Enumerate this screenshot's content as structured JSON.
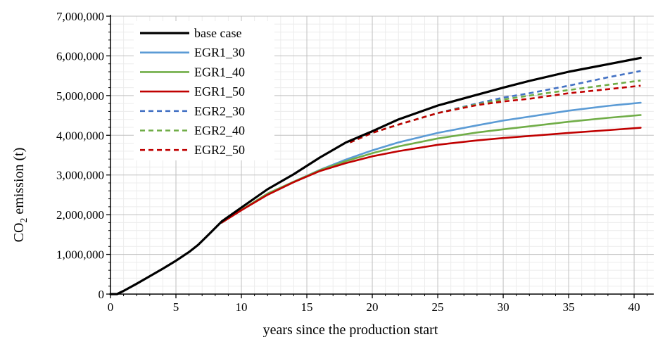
{
  "chart_data": {
    "type": "line",
    "title": "",
    "xlabel": "years since the production start",
    "ylabel_main": "CO",
    "ylabel_sub": "2",
    "ylabel_rest": " emission (t)",
    "xlim": [
      0,
      41.5
    ],
    "ylim": [
      0,
      7000000
    ],
    "xticks": [
      0,
      5,
      10,
      15,
      20,
      25,
      30,
      35,
      40
    ],
    "xtick_labels": [
      "0",
      "5",
      "10",
      "15",
      "20",
      "25",
      "30",
      "35",
      "40"
    ],
    "yticks": [
      0,
      1000000,
      2000000,
      3000000,
      4000000,
      5000000,
      6000000,
      7000000
    ],
    "ytick_labels": [
      "0",
      "1,000,000",
      "2,000,000",
      "3,000,000",
      "4,000,000",
      "5,000,000",
      "6,000,000",
      "7,000,000"
    ],
    "grid": true,
    "legend_position": "top-left",
    "series": [
      {
        "name": "base case",
        "color": "#000000",
        "dash": "solid",
        "points": [
          [
            0,
            0
          ],
          [
            0.5,
            0
          ],
          [
            1,
            80000
          ],
          [
            2,
            260000
          ],
          [
            3,
            450000
          ],
          [
            4,
            640000
          ],
          [
            5,
            840000
          ],
          [
            6,
            1060000
          ],
          [
            6.7,
            1240000
          ],
          [
            7.5,
            1500000
          ],
          [
            8.5,
            1830000
          ],
          [
            10,
            2180000
          ],
          [
            12,
            2640000
          ],
          [
            14,
            3020000
          ],
          [
            16,
            3440000
          ],
          [
            18,
            3820000
          ],
          [
            20,
            4100000
          ],
          [
            22,
            4400000
          ],
          [
            25,
            4750000
          ],
          [
            28,
            5020000
          ],
          [
            30,
            5200000
          ],
          [
            32,
            5370000
          ],
          [
            35,
            5600000
          ],
          [
            38,
            5790000
          ],
          [
            40.5,
            5950000
          ]
        ]
      },
      {
        "name": "EGR1_30",
        "color": "#5b9bd5",
        "dash": "solid",
        "points": [
          [
            8.5,
            1800000
          ],
          [
            10,
            2120000
          ],
          [
            12,
            2530000
          ],
          [
            14,
            2830000
          ],
          [
            16,
            3130000
          ],
          [
            18,
            3390000
          ],
          [
            20,
            3620000
          ],
          [
            22,
            3820000
          ],
          [
            25,
            4060000
          ],
          [
            28,
            4250000
          ],
          [
            30,
            4370000
          ],
          [
            35,
            4620000
          ],
          [
            38,
            4740000
          ],
          [
            40.5,
            4820000
          ]
        ]
      },
      {
        "name": "EGR1_40",
        "color": "#70ad47",
        "dash": "solid",
        "points": [
          [
            8.5,
            1800000
          ],
          [
            10,
            2120000
          ],
          [
            12,
            2530000
          ],
          [
            14,
            2830000
          ],
          [
            16,
            3120000
          ],
          [
            18,
            3350000
          ],
          [
            20,
            3550000
          ],
          [
            22,
            3720000
          ],
          [
            25,
            3920000
          ],
          [
            28,
            4070000
          ],
          [
            30,
            4150000
          ],
          [
            35,
            4340000
          ],
          [
            38,
            4440000
          ],
          [
            40.5,
            4510000
          ]
        ]
      },
      {
        "name": "EGR1_50",
        "color": "#c00000",
        "dash": "solid",
        "points": [
          [
            8.5,
            1800000
          ],
          [
            10,
            2110000
          ],
          [
            12,
            2500000
          ],
          [
            14,
            2820000
          ],
          [
            16,
            3100000
          ],
          [
            18,
            3300000
          ],
          [
            20,
            3470000
          ],
          [
            22,
            3600000
          ],
          [
            25,
            3760000
          ],
          [
            28,
            3870000
          ],
          [
            30,
            3930000
          ],
          [
            35,
            4060000
          ],
          [
            38,
            4130000
          ],
          [
            40.5,
            4190000
          ]
        ]
      },
      {
        "name": "EGR2_30",
        "color": "#4472c4",
        "dash": "dashed",
        "points": [
          [
            18.3,
            3820000
          ],
          [
            20,
            4060000
          ],
          [
            22,
            4270000
          ],
          [
            25,
            4560000
          ],
          [
            28,
            4800000
          ],
          [
            30,
            4950000
          ],
          [
            32,
            5060000
          ],
          [
            35,
            5250000
          ],
          [
            38,
            5460000
          ],
          [
            40.5,
            5620000
          ]
        ]
      },
      {
        "name": "EGR2_40",
        "color": "#70ad47",
        "dash": "dashed",
        "points": [
          [
            18.3,
            3820000
          ],
          [
            20,
            4060000
          ],
          [
            22,
            4270000
          ],
          [
            25,
            4560000
          ],
          [
            28,
            4780000
          ],
          [
            30,
            4900000
          ],
          [
            32,
            5000000
          ],
          [
            35,
            5140000
          ],
          [
            38,
            5270000
          ],
          [
            40.5,
            5380000
          ]
        ]
      },
      {
        "name": "EGR2_50",
        "color": "#c00000",
        "dash": "dashed",
        "points": [
          [
            18.3,
            3820000
          ],
          [
            20,
            4060000
          ],
          [
            22,
            4270000
          ],
          [
            25,
            4560000
          ],
          [
            28,
            4760000
          ],
          [
            30,
            4850000
          ],
          [
            32,
            4920000
          ],
          [
            35,
            5060000
          ],
          [
            38,
            5160000
          ],
          [
            40.5,
            5250000
          ]
        ]
      }
    ]
  }
}
